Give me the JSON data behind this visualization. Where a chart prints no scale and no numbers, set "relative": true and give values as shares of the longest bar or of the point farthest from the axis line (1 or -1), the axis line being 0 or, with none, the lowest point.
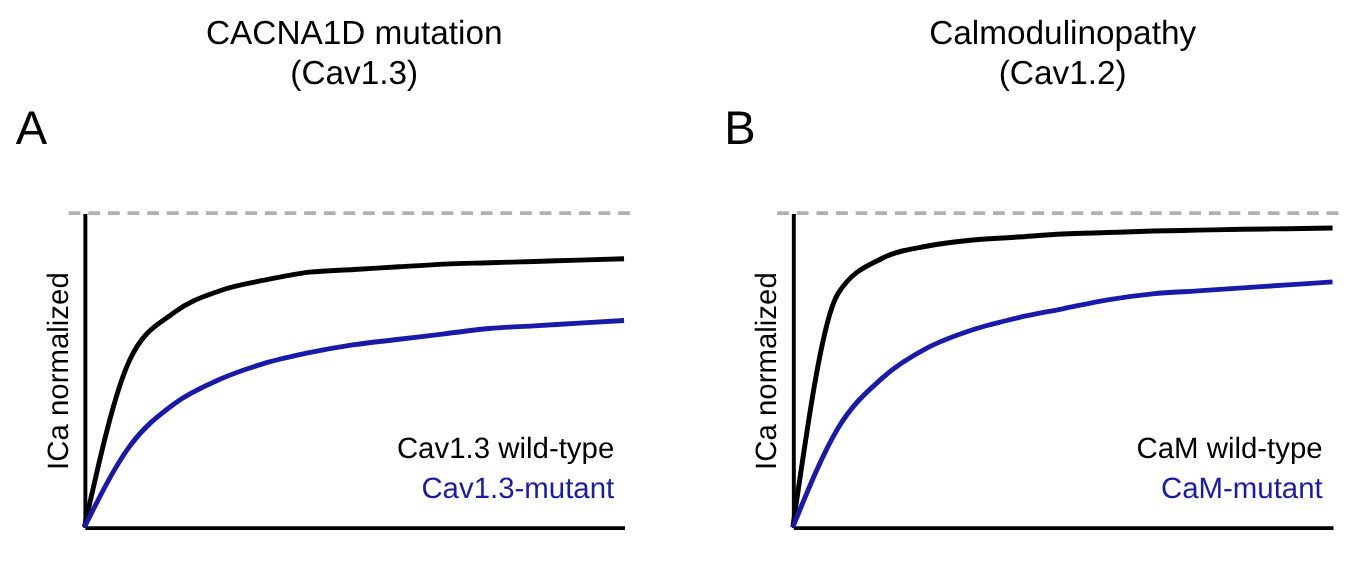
{
  "chart_data": [
    {
      "type": "line",
      "title": "CACNA1D mutation (Cav1.3)",
      "ylabel": "ICa normalized",
      "annotations": [
        "A"
      ],
      "relative": true,
      "tick_labels": false,
      "grid": false,
      "legend": "bottom right",
      "marker": "none",
      "line_style": "solid",
      "categories": [
        null,
        null,
        null,
        null,
        null,
        null,
        null,
        null,
        null,
        null,
        null,
        null,
        null
      ],
      "series": [
        {
          "name": "Cav1.3 wild-type",
          "color": "#000000",
          "values": [
            0,
            0.62,
            0.8,
            0.88,
            0.92,
            0.95,
            0.96,
            0.97,
            0.98,
            0.985,
            0.99,
            0.995,
            1
          ]
        },
        {
          "name": "Cav1.3-mutant",
          "color": "#1a1aaa",
          "values": [
            0,
            0.3,
            0.46,
            0.55,
            0.61,
            0.65,
            0.68,
            0.7,
            0.72,
            0.74,
            0.75,
            0.76,
            0.77
          ]
        }
      ],
      "ref_lines": [
        {
          "axis": "y",
          "value": 1.17,
          "color": "#b0b0b0",
          "line_style": "dashed"
        }
      ]
    },
    {
      "type": "line",
      "title": "Calmodulinopathy (Cav1.2)",
      "ylabel": "ICa normalized",
      "annotations": [
        "B"
      ],
      "relative": true,
      "tick_labels": false,
      "grid": false,
      "legend": "bottom right",
      "marker": "none",
      "line_style": "solid",
      "categories": [
        null,
        null,
        null,
        null,
        null,
        null,
        null,
        null,
        null,
        null,
        null,
        null,
        null
      ],
      "series": [
        {
          "name": "CaM wild-type",
          "color": "#000000",
          "values": [
            0,
            0.78,
            0.9,
            0.94,
            0.96,
            0.97,
            0.98,
            0.985,
            0.99,
            0.993,
            0.996,
            0.998,
            1
          ]
        },
        {
          "name": "CaM-mutant",
          "color": "#1a1aaa",
          "values": [
            0,
            0.33,
            0.5,
            0.6,
            0.66,
            0.7,
            0.73,
            0.76,
            0.78,
            0.79,
            0.8,
            0.81,
            0.82
          ]
        }
      ],
      "ref_lines": [
        {
          "axis": "y",
          "value": 1.05,
          "color": "#b0b0b0",
          "line_style": "dashed"
        }
      ]
    }
  ]
}
